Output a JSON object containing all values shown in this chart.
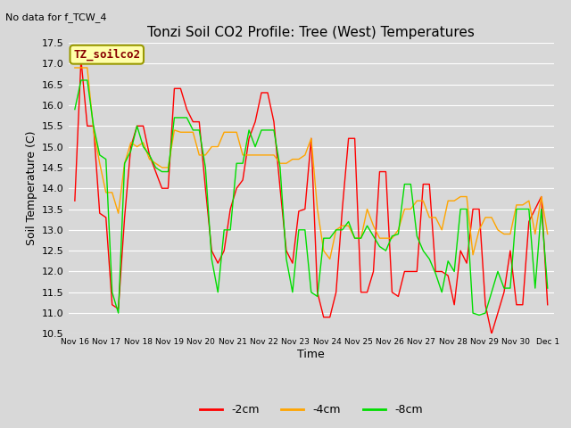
{
  "title": "Tonzi Soil CO2 Profile: Tree (West) Temperatures",
  "subtitle": "No data for f_TCW_4",
  "ylabel": "Soil Temperature (C)",
  "xlabel": "Time",
  "legend_label": "TZ_soilco2",
  "ylim": [
    10.5,
    17.5
  ],
  "yticks": [
    10.5,
    11.0,
    11.5,
    12.0,
    12.5,
    13.0,
    13.5,
    14.0,
    14.5,
    15.0,
    15.5,
    16.0,
    16.5,
    17.0,
    17.5
  ],
  "xtick_labels": [
    "Nov 16",
    "Nov 17",
    "Nov 18",
    "Nov 19",
    "Nov 20",
    "Nov 21",
    "Nov 22",
    "Nov 23",
    "Nov 24",
    "Nov 25",
    "Nov 26",
    "Nov 27",
    "Nov 28",
    "Nov 29",
    "Nov 30",
    "Dec 1"
  ],
  "line_colors": {
    "2cm": "#ff0000",
    "4cm": "#ffa500",
    "8cm": "#00dd00"
  },
  "legend_entries": [
    "-2cm",
    "-4cm",
    "-8cm"
  ],
  "legend_colors": [
    "#ff0000",
    "#ffa500",
    "#00dd00"
  ],
  "bg_color": "#d8d8d8",
  "plot_bg_color": "#d8d8d8",
  "grid_color": "#ffffff",
  "series_2cm": [
    13.7,
    17.1,
    15.5,
    15.5,
    13.4,
    13.3,
    11.2,
    11.1,
    13.3,
    15.0,
    15.5,
    15.5,
    14.8,
    14.4,
    14.0,
    14.0,
    16.4,
    16.4,
    15.9,
    15.6,
    15.6,
    14.0,
    12.5,
    12.2,
    12.5,
    13.5,
    14.0,
    14.2,
    15.2,
    15.6,
    16.3,
    16.3,
    15.6,
    14.0,
    12.5,
    12.2,
    13.45,
    13.5,
    15.2,
    11.5,
    10.9,
    10.9,
    11.5,
    13.5,
    15.2,
    15.2,
    11.5,
    11.5,
    12.0,
    14.4,
    14.4,
    11.5,
    11.4,
    12.0,
    12.0,
    12.0,
    14.1,
    14.1,
    12.0,
    12.0,
    11.9,
    11.2,
    12.5,
    12.2,
    13.5,
    13.5,
    11.2,
    10.5,
    11.0,
    11.5,
    12.5,
    11.2,
    11.2,
    13.2,
    13.5,
    13.8,
    11.2
  ],
  "series_4cm": [
    16.9,
    16.9,
    16.9,
    15.4,
    14.6,
    13.9,
    13.9,
    13.4,
    14.6,
    15.1,
    15.0,
    15.1,
    14.7,
    14.6,
    14.5,
    14.5,
    15.4,
    15.35,
    15.35,
    15.35,
    14.8,
    14.8,
    15.0,
    15.0,
    15.35,
    15.35,
    15.35,
    14.8,
    14.8,
    14.8,
    14.8,
    14.8,
    14.8,
    14.6,
    14.6,
    14.7,
    14.7,
    14.8,
    15.2,
    13.5,
    12.5,
    12.3,
    13.0,
    13.1,
    13.1,
    12.8,
    12.8,
    13.5,
    13.1,
    12.8,
    12.8,
    12.8,
    13.0,
    13.5,
    13.5,
    13.7,
    13.7,
    13.3,
    13.3,
    13.0,
    13.7,
    13.7,
    13.8,
    13.8,
    12.4,
    13.0,
    13.3,
    13.3,
    13.0,
    12.9,
    12.9,
    13.6,
    13.6,
    13.7,
    12.9,
    13.8,
    12.9
  ],
  "series_8cm": [
    15.9,
    16.6,
    16.6,
    15.5,
    14.8,
    14.7,
    11.5,
    11.0,
    14.6,
    14.9,
    15.5,
    15.0,
    14.8,
    14.5,
    14.4,
    14.4,
    15.7,
    15.7,
    15.7,
    15.4,
    15.4,
    14.5,
    12.3,
    11.5,
    13.0,
    13.0,
    14.6,
    14.6,
    15.4,
    15.0,
    15.4,
    15.4,
    15.4,
    14.5,
    12.3,
    11.5,
    13.0,
    13.0,
    11.5,
    11.4,
    12.8,
    12.8,
    13.0,
    13.0,
    13.2,
    12.8,
    12.8,
    13.1,
    12.85,
    12.6,
    12.5,
    12.85,
    12.9,
    14.1,
    14.1,
    12.85,
    12.5,
    12.3,
    11.95,
    11.5,
    12.25,
    12.0,
    13.5,
    13.5,
    11.0,
    10.95,
    11.0,
    11.5,
    12.0,
    11.6,
    11.6,
    13.5,
    13.5,
    13.5,
    11.6,
    13.5,
    11.6
  ],
  "n_points": 77
}
